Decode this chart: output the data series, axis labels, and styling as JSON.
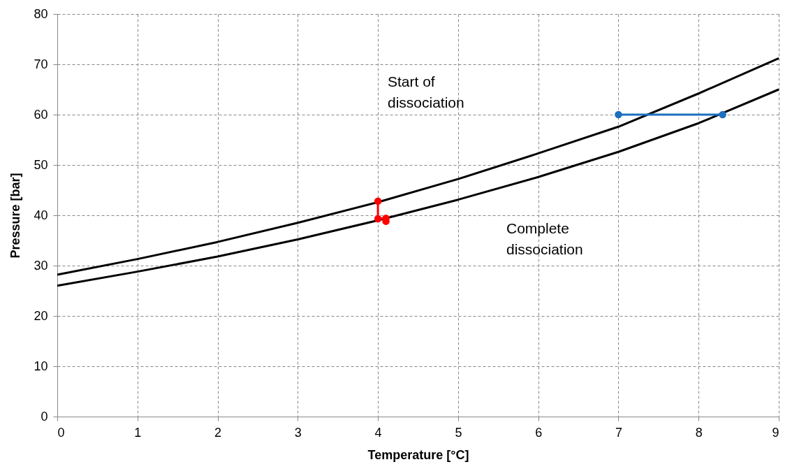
{
  "chart_data": {
    "type": "line",
    "xlabel": "Temperature [°C]",
    "ylabel": "Pressure [bar]",
    "xlim": [
      0,
      9
    ],
    "xticks": [
      0,
      1,
      2,
      3,
      4,
      5,
      6,
      7,
      8,
      9
    ],
    "ylim": [
      0,
      80
    ],
    "yticks": [
      0,
      10,
      20,
      30,
      40,
      50,
      60,
      70,
      80
    ],
    "grid": true,
    "series": [
      {
        "color": "#000000",
        "marker": "none",
        "x": [
          0,
          1,
          2,
          3,
          4,
          5,
          6,
          7,
          8,
          9
        ],
        "values": [
          28.2,
          31.3,
          34.7,
          38.5,
          42.6,
          47.2,
          52.3,
          57.6,
          64.2,
          71.2
        ]
      },
      {
        "color": "#000000",
        "marker": "none",
        "x": [
          0,
          1,
          2,
          3,
          4,
          5,
          6,
          7,
          8,
          9
        ],
        "values": [
          26,
          28.8,
          31.8,
          35.2,
          39.0,
          43.1,
          47.6,
          52.6,
          58.3,
          65
        ]
      },
      {
        "color": "#ff0000",
        "marker": "circle",
        "x": [
          4,
          4,
          4.1,
          4.1
        ],
        "values": [
          42.8,
          39.3,
          39.4,
          38.8
        ]
      },
      {
        "color": "#1f6fbf",
        "marker": "circle",
        "x": [
          7,
          8.3
        ],
        "values": [
          60,
          60
        ]
      }
    ],
    "annotations": [
      "Start of\ndissociation",
      "Complete\ndissociation"
    ]
  }
}
